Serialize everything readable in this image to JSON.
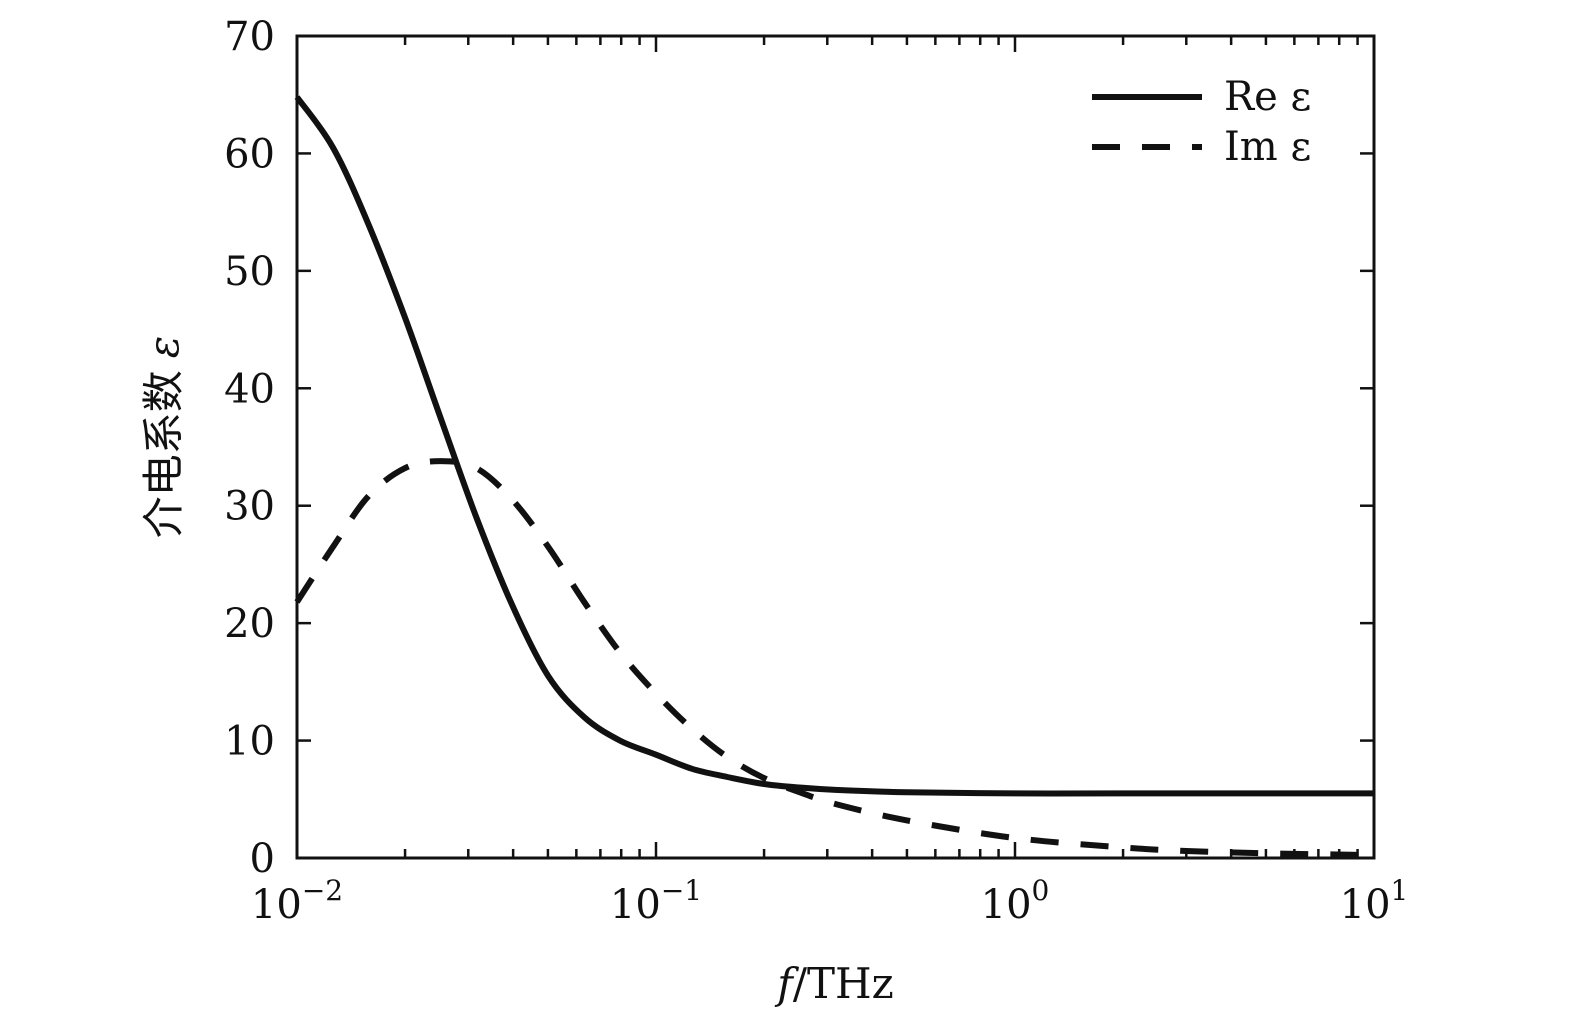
{
  "chart_data": {
    "type": "line",
    "title": "",
    "xlabel": "f/THz",
    "xlabel_italic_part": "f",
    "xlabel_rest": "/THz",
    "ylabel": "介电系数 ε",
    "ylabel_cjk": "介电系数",
    "ylabel_symbol": "ε",
    "x_scale": "log",
    "xlim": [
      0.01,
      10
    ],
    "ylim": [
      0,
      70
    ],
    "x_ticks": [
      {
        "value": 0.01,
        "base": "10",
        "exp": "−2"
      },
      {
        "value": 0.1,
        "base": "10",
        "exp": "−1"
      },
      {
        "value": 1,
        "base": "10",
        "exp": "0"
      },
      {
        "value": 10,
        "base": "10",
        "exp": "1"
      }
    ],
    "y_ticks": [
      0,
      10,
      20,
      30,
      40,
      50,
      60,
      70
    ],
    "grid": false,
    "legend_position": "top-right",
    "series": [
      {
        "name": "Re ε",
        "style": "solid",
        "color": "#111111",
        "x": [
          0.01,
          0.0126,
          0.0158,
          0.02,
          0.0251,
          0.0316,
          0.0398,
          0.0501,
          0.0631,
          0.0794,
          0.1,
          0.126,
          0.158,
          0.2,
          0.251,
          0.316,
          0.5,
          1,
          2,
          5,
          10
        ],
        "y": [
          64.8,
          60.5,
          54.0,
          46.0,
          37.5,
          29.0,
          21.5,
          15.5,
          12.0,
          10.0,
          8.8,
          7.6,
          6.9,
          6.3,
          6.0,
          5.8,
          5.6,
          5.5,
          5.5,
          5.5,
          5.5
        ]
      },
      {
        "name": "Im ε",
        "style": "dashed",
        "color": "#111111",
        "x": [
          0.01,
          0.0126,
          0.0158,
          0.02,
          0.0251,
          0.0316,
          0.0398,
          0.0501,
          0.0631,
          0.0794,
          0.1,
          0.126,
          0.158,
          0.2,
          0.251,
          0.316,
          0.5,
          1,
          2,
          3,
          5,
          10
        ],
        "y": [
          21.8,
          26.5,
          30.8,
          33.2,
          33.8,
          33.2,
          30.5,
          26.5,
          21.8,
          17.5,
          14.0,
          11.0,
          8.6,
          6.8,
          5.6,
          4.6,
          3.2,
          1.7,
          0.9,
          0.6,
          0.4,
          0.25
        ]
      }
    ]
  }
}
